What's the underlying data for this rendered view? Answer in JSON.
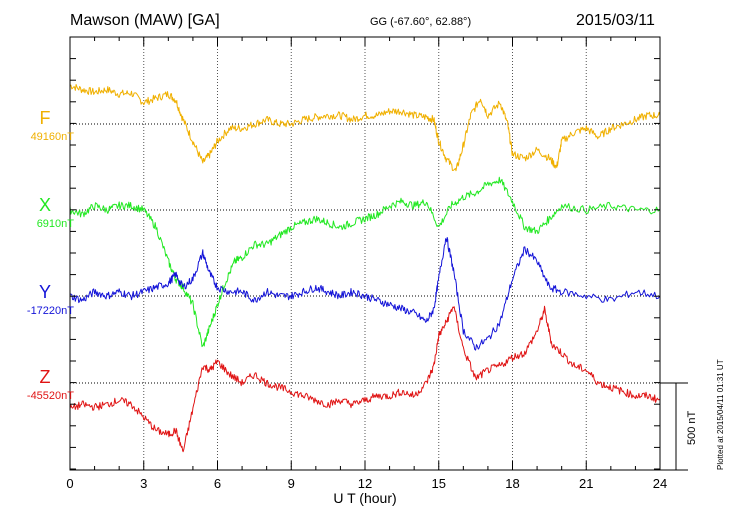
{
  "header": {
    "station": "Mawson (MAW)  [GA]",
    "coords": "GG (-67.60°,  62.88°)",
    "date": "2015/03/11"
  },
  "footer": {
    "plotted": "Plotted at 2015/04/11 01:31  UT"
  },
  "scale_bar": {
    "label": "500 nT",
    "value_nT": 500
  },
  "chart_data": {
    "type": "line",
    "xlabel": "U T (hour)",
    "xlim": [
      0,
      24
    ],
    "xticks": [
      "0",
      "3",
      "6",
      "9",
      "12",
      "15",
      "18",
      "21",
      "24"
    ],
    "grid": true,
    "unit": "nT",
    "series": [
      {
        "name": "F",
        "baseline_label": "49160nT",
        "color": "#f0b000",
        "points": [
          [
            0,
            45
          ],
          [
            0.5,
            40
          ],
          [
            1,
            37
          ],
          [
            1.5,
            40
          ],
          [
            2,
            35
          ],
          [
            2.5,
            36
          ],
          [
            3,
            25
          ],
          [
            3.5,
            30
          ],
          [
            4,
            35
          ],
          [
            4.3,
            28
          ],
          [
            4.6,
            5
          ],
          [
            5,
            -20
          ],
          [
            5.4,
            -45
          ],
          [
            5.7,
            -35
          ],
          [
            6,
            -20
          ],
          [
            6.5,
            -5
          ],
          [
            7,
            -5
          ],
          [
            7.5,
            0
          ],
          [
            8,
            5
          ],
          [
            8.5,
            0
          ],
          [
            9,
            0
          ],
          [
            9.5,
            5
          ],
          [
            10,
            8
          ],
          [
            10.5,
            10
          ],
          [
            11,
            10
          ],
          [
            11.5,
            5
          ],
          [
            12,
            10
          ],
          [
            12.5,
            10
          ],
          [
            13,
            15
          ],
          [
            13.5,
            15
          ],
          [
            14,
            10
          ],
          [
            14.5,
            8
          ],
          [
            14.8,
            5
          ],
          [
            15,
            -20
          ],
          [
            15.3,
            -40
          ],
          [
            15.7,
            -55
          ],
          [
            16,
            -25
          ],
          [
            16.3,
            10
          ],
          [
            16.7,
            30
          ],
          [
            17,
            10
          ],
          [
            17.5,
            25
          ],
          [
            17.8,
            0
          ],
          [
            18,
            -35
          ],
          [
            18.5,
            -40
          ],
          [
            19,
            -30
          ],
          [
            19.5,
            -40
          ],
          [
            19.8,
            -50
          ],
          [
            20,
            -20
          ],
          [
            20.5,
            -10
          ],
          [
            21,
            -5
          ],
          [
            21.5,
            -15
          ],
          [
            22,
            -5
          ],
          [
            22.5,
            0
          ],
          [
            23,
            5
          ],
          [
            23.5,
            10
          ],
          [
            24,
            10
          ]
        ]
      },
      {
        "name": "X",
        "baseline_label": "6910nT",
        "color": "#22e822",
        "points": [
          [
            0,
            0
          ],
          [
            0.5,
            -5
          ],
          [
            1,
            5
          ],
          [
            1.5,
            0
          ],
          [
            2,
            5
          ],
          [
            2.5,
            5
          ],
          [
            3,
            0
          ],
          [
            3.5,
            -20
          ],
          [
            4,
            -60
          ],
          [
            4.3,
            -80
          ],
          [
            4.6,
            -90
          ],
          [
            5,
            -110
          ],
          [
            5.4,
            -160
          ],
          [
            5.7,
            -135
          ],
          [
            6,
            -110
          ],
          [
            6.3,
            -85
          ],
          [
            6.7,
            -60
          ],
          [
            7,
            -55
          ],
          [
            7.5,
            -40
          ],
          [
            8,
            -40
          ],
          [
            8.5,
            -30
          ],
          [
            9,
            -20
          ],
          [
            9.5,
            -15
          ],
          [
            10,
            -10
          ],
          [
            10.5,
            -15
          ],
          [
            11,
            -20
          ],
          [
            11.5,
            -15
          ],
          [
            12,
            -10
          ],
          [
            12.5,
            -5
          ],
          [
            13,
            5
          ],
          [
            13.5,
            10
          ],
          [
            14,
            5
          ],
          [
            14.5,
            10
          ],
          [
            15,
            -20
          ],
          [
            15.5,
            5
          ],
          [
            16,
            15
          ],
          [
            16.5,
            20
          ],
          [
            17,
            30
          ],
          [
            17.5,
            35
          ],
          [
            18,
            10
          ],
          [
            18.5,
            -20
          ],
          [
            19,
            -25
          ],
          [
            19.5,
            -10
          ],
          [
            20,
            5
          ],
          [
            21,
            0
          ],
          [
            22,
            5
          ],
          [
            23,
            0
          ],
          [
            24,
            0
          ]
        ]
      },
      {
        "name": "Y",
        "baseline_label": "-17220nT",
        "color": "#1414d8",
        "points": [
          [
            0,
            0
          ],
          [
            0.5,
            -5
          ],
          [
            1,
            5
          ],
          [
            1.5,
            0
          ],
          [
            2,
            5
          ],
          [
            2.5,
            0
          ],
          [
            3,
            5
          ],
          [
            3.5,
            10
          ],
          [
            4,
            15
          ],
          [
            4.3,
            25
          ],
          [
            4.6,
            10
          ],
          [
            5,
            20
          ],
          [
            5.4,
            50
          ],
          [
            5.7,
            25
          ],
          [
            6,
            10
          ],
          [
            6.5,
            5
          ],
          [
            7,
            5
          ],
          [
            7.5,
            -5
          ],
          [
            8,
            5
          ],
          [
            8.5,
            0
          ],
          [
            9,
            0
          ],
          [
            9.5,
            5
          ],
          [
            10,
            10
          ],
          [
            10.5,
            5
          ],
          [
            11,
            0
          ],
          [
            11.5,
            5
          ],
          [
            12,
            0
          ],
          [
            12.5,
            -5
          ],
          [
            13,
            -10
          ],
          [
            13.5,
            -15
          ],
          [
            14,
            -20
          ],
          [
            14.5,
            -30
          ],
          [
            14.8,
            -15
          ],
          [
            15,
            20
          ],
          [
            15.3,
            70
          ],
          [
            15.6,
            30
          ],
          [
            16,
            -40
          ],
          [
            16.5,
            -60
          ],
          [
            17,
            -50
          ],
          [
            17.5,
            -30
          ],
          [
            18,
            20
          ],
          [
            18.5,
            55
          ],
          [
            19,
            40
          ],
          [
            19.5,
            10
          ],
          [
            20,
            5
          ],
          [
            21,
            0
          ],
          [
            22,
            -5
          ],
          [
            23,
            5
          ],
          [
            24,
            0
          ]
        ]
      },
      {
        "name": "Z",
        "baseline_label": "-45520nT",
        "color": "#e01414",
        "points": [
          [
            0,
            -30
          ],
          [
            0.5,
            -25
          ],
          [
            1,
            -28
          ],
          [
            1.5,
            -25
          ],
          [
            2,
            -20
          ],
          [
            2.5,
            -25
          ],
          [
            3,
            -40
          ],
          [
            3.5,
            -55
          ],
          [
            4,
            -60
          ],
          [
            4.3,
            -55
          ],
          [
            4.6,
            -80
          ],
          [
            5,
            -30
          ],
          [
            5.4,
            20
          ],
          [
            5.7,
            15
          ],
          [
            6,
            25
          ],
          [
            6.5,
            10
          ],
          [
            7,
            0
          ],
          [
            7.5,
            10
          ],
          [
            8,
            0
          ],
          [
            8.5,
            -5
          ],
          [
            9,
            -10
          ],
          [
            9.5,
            -15
          ],
          [
            10,
            -20
          ],
          [
            10.5,
            -25
          ],
          [
            11,
            -20
          ],
          [
            11.5,
            -25
          ],
          [
            12,
            -20
          ],
          [
            12.5,
            -15
          ],
          [
            13,
            -15
          ],
          [
            13.5,
            -10
          ],
          [
            14,
            -15
          ],
          [
            14.5,
            0
          ],
          [
            14.8,
            20
          ],
          [
            15,
            55
          ],
          [
            15.3,
            70
          ],
          [
            15.6,
            90
          ],
          [
            16,
            40
          ],
          [
            16.5,
            5
          ],
          [
            17,
            15
          ],
          [
            17.5,
            20
          ],
          [
            18,
            30
          ],
          [
            18.5,
            35
          ],
          [
            19,
            60
          ],
          [
            19.3,
            85
          ],
          [
            19.6,
            45
          ],
          [
            20,
            35
          ],
          [
            20.5,
            20
          ],
          [
            21,
            15
          ],
          [
            21.5,
            0
          ],
          [
            22,
            -5
          ],
          [
            22.5,
            -10
          ],
          [
            23,
            -15
          ],
          [
            23.5,
            -15
          ],
          [
            24,
            -20
          ]
        ]
      }
    ]
  }
}
